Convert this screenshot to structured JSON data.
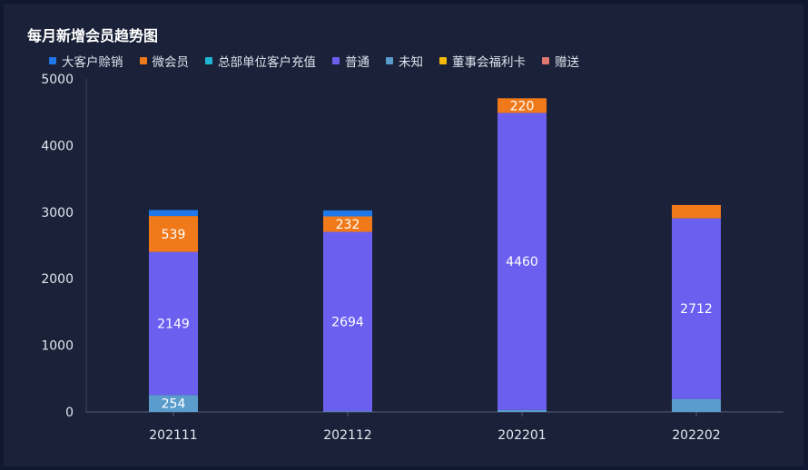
{
  "title": "每月新增会员趋势图",
  "chart_data": {
    "type": "bar",
    "stacked": true,
    "categories": [
      "202111",
      "202112",
      "202201",
      "202202"
    ],
    "ylim": [
      0,
      5000
    ],
    "yticks": [
      0,
      1000,
      2000,
      3000,
      4000,
      5000
    ],
    "grid": false,
    "legend_position": "top-left",
    "stack_order": [
      "未知",
      "普通",
      "微会员",
      "大客户赊销",
      "总部单位客户充值",
      "董事会福利卡",
      "赠送"
    ],
    "series": [
      {
        "name": "大客户赊销",
        "color": "#1f77e8",
        "values": [
          90,
          90,
          0,
          0
        ],
        "show_labels": [
          false,
          false,
          false,
          false
        ]
      },
      {
        "name": "微会员",
        "color": "#f07a1a",
        "values": [
          539,
          232,
          220,
          200
        ],
        "show_labels": [
          true,
          true,
          true,
          false
        ]
      },
      {
        "name": "总部单位客户充值",
        "color": "#1fb5d4",
        "values": [
          0,
          0,
          0,
          0
        ],
        "show_labels": [
          false,
          false,
          false,
          false
        ]
      },
      {
        "name": "普通",
        "color": "#6b5ff0",
        "values": [
          2149,
          2694,
          4460,
          2712
        ],
        "show_labels": [
          true,
          true,
          true,
          true
        ]
      },
      {
        "name": "未知",
        "color": "#5a9ccc",
        "values": [
          254,
          10,
          30,
          195
        ],
        "show_labels": [
          true,
          false,
          false,
          false
        ]
      },
      {
        "name": "董事会福利卡",
        "color": "#f5b80c",
        "values": [
          0,
          0,
          0,
          0
        ],
        "show_labels": [
          false,
          false,
          false,
          false
        ]
      },
      {
        "name": "赠送",
        "color": "#e07870",
        "values": [
          0,
          0,
          0,
          0
        ],
        "show_labels": [
          false,
          false,
          false,
          false
        ]
      }
    ]
  }
}
